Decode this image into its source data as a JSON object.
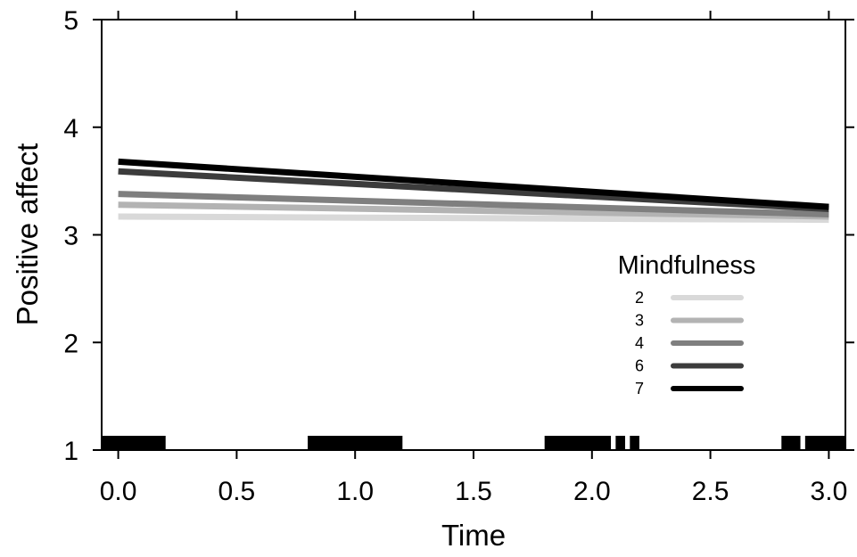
{
  "chart_data": {
    "type": "line",
    "title": "",
    "xlabel": "Time",
    "ylabel": "Positive affect",
    "xlim": [
      -0.07,
      3.07
    ],
    "ylim": [
      1,
      5
    ],
    "xticks": [
      0.0,
      0.5,
      1.0,
      1.5,
      2.0,
      2.5,
      3.0
    ],
    "xtick_labels": [
      "0.0",
      "0.5",
      "1.0",
      "1.5",
      "2.0",
      "2.5",
      "3.0"
    ],
    "yticks": [
      1,
      2,
      3,
      4,
      5
    ],
    "ytick_labels": [
      "1",
      "2",
      "3",
      "4",
      "5"
    ],
    "grid": false,
    "legend": {
      "title": "Mindfulness",
      "placement": "right"
    },
    "series": [
      {
        "name": "2",
        "color": "#d9d9d9",
        "x": [
          0,
          3
        ],
        "y": [
          3.17,
          3.14
        ]
      },
      {
        "name": "3",
        "color": "#b3b3b3",
        "x": [
          0,
          3
        ],
        "y": [
          3.28,
          3.17
        ]
      },
      {
        "name": "4",
        "color": "#7f7f7f",
        "x": [
          0,
          3
        ],
        "y": [
          3.38,
          3.19
        ]
      },
      {
        "name": "6",
        "color": "#3c3c3c",
        "x": [
          0,
          3
        ],
        "y": [
          3.59,
          3.24
        ]
      },
      {
        "name": "7",
        "color": "#000000",
        "x": [
          0,
          3
        ],
        "y": [
          3.68,
          3.26
        ]
      }
    ],
    "rug_segments": [
      [
        -0.07,
        0.2
      ],
      [
        0.8,
        1.2
      ],
      [
        1.8,
        2.08
      ],
      [
        2.1,
        2.14
      ],
      [
        2.16,
        2.2
      ],
      [
        2.8,
        2.88
      ],
      [
        2.9,
        3.07
      ]
    ]
  }
}
